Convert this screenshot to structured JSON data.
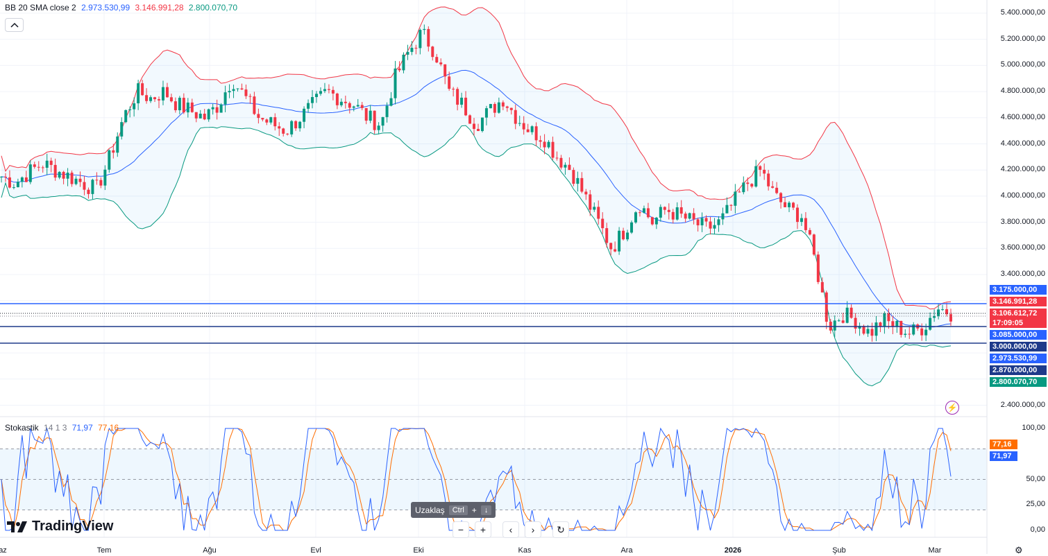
{
  "legend": {
    "indicator": "BB 20 SMA close 2",
    "basis": "2.973.530,99",
    "upper": "3.146.991,28",
    "lower": "2.800.070,70",
    "colors": {
      "basis": "#2962ff",
      "upper": "#f23645",
      "lower": "#089981"
    }
  },
  "stoch_legend": {
    "name": "Stokastik",
    "params": "14 1 3",
    "k": "71,97",
    "d": "77,16",
    "colors": {
      "k": "#2962ff",
      "d": "#ff6d00"
    }
  },
  "price_axis": [
    "5.400.000,00",
    "5.200.000,00",
    "5.000.000,00",
    "4.800.000,00",
    "4.600.000,00",
    "4.400.000,00",
    "4.200.000,00",
    "4.000.000,00",
    "3.800.000,00",
    "3.600.000,00",
    "3.400.000,00",
    "2.400.000,00"
  ],
  "price_tags": [
    {
      "text": "3.175.000,00",
      "color": "#2962ff"
    },
    {
      "text": "3.146.991,28",
      "color": "#f23645"
    },
    {
      "text": "3.106.612,72",
      "color": "#f23645"
    },
    {
      "text": "17:09:05",
      "color": "#f23645"
    },
    {
      "text": "3.085.000,00",
      "color": "#2962ff"
    },
    {
      "text": "3.000.000,00",
      "color": "#1e3a8a"
    },
    {
      "text": "2.973.530,99",
      "color": "#2962ff"
    },
    {
      "text": "2.870.000,00",
      "color": "#1e3a8a"
    },
    {
      "text": "2.800.070,70",
      "color": "#089981"
    }
  ],
  "stoch_axis": [
    "100,00",
    "50,00",
    "25,00",
    "0,00"
  ],
  "stoch_tags": [
    {
      "text": "77,16",
      "color": "#ff6d00"
    },
    {
      "text": "71,97",
      "color": "#2962ff"
    }
  ],
  "time_axis": [
    "az",
    "Tem",
    "Ağu",
    "Evl",
    "Eki",
    "Kas",
    "Ara",
    "2026",
    "Şub",
    "Mar"
  ],
  "zoom_hint": {
    "label": "Uzaklaş",
    "key": "Ctrl",
    "plus": "+",
    "arrow": "↓"
  },
  "nav": {
    "minus": "−",
    "plus": "+",
    "left": "‹",
    "right": "›",
    "reset": "↻"
  },
  "logo": "TradingView",
  "chart_data": {
    "type": "candlestick",
    "price_range": [
      2300000,
      5500000
    ],
    "horizontal_levels": [
      3175000,
      3085000,
      3000000
    ],
    "close_trend": [
      4150000,
      4100000,
      4180000,
      4250000,
      4200000,
      4150000,
      4100000,
      4050000,
      4300000,
      4600000,
      4800000,
      4750000,
      4800000,
      4700000,
      4650000,
      4600000,
      4700000,
      4900000,
      4750000,
      4600000,
      4550000,
      4500000,
      4600000,
      4700000,
      4800000,
      4750000,
      4700000,
      4600000,
      4550000,
      4900000,
      5100000,
      5250000,
      5100000,
      4800000,
      4700000,
      4550000,
      4650000,
      4750000,
      4600000,
      4500000,
      4450000,
      4300000,
      4200000,
      4000000,
      3800000,
      3600000,
      3750000,
      3950000,
      3800000,
      3900000,
      3850000,
      3800000,
      3750000,
      3800000,
      3950000,
      4100000,
      4200000,
      4000000,
      3900000,
      3850000,
      3500000,
      3000000,
      3100000,
      3050000,
      2950000,
      3050000,
      3000000,
      2950000,
      3000000,
      3150000,
      3106612
    ]
  }
}
